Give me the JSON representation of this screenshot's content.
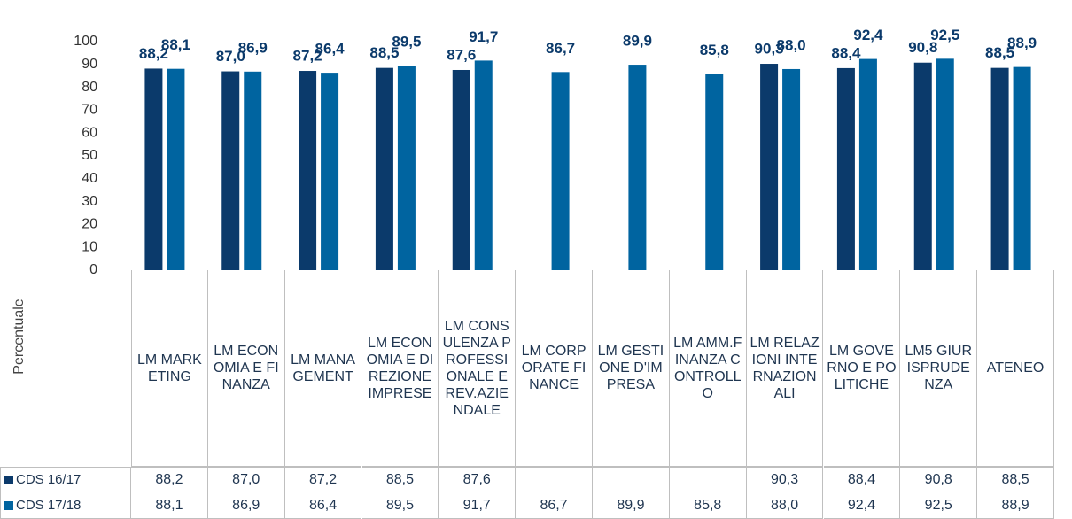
{
  "chart_data": {
    "type": "bar",
    "y_label": "Percentuale",
    "categories": [
      "LM MARKETING",
      "LM ECONOMIA E FINANZA",
      "LM MANAGEMENT",
      "LM ECONOMIA E DIREZIONE IMPRESE",
      "LM CONSULENZA PROFESSIONALE E REV.AZIENDALE",
      "LM CORPORATE FINANCE",
      "LM GESTIONE D'IMPRESA",
      "LM AMM.FINANZA CONTROLLO",
      "LM RELAZIONI INTERNAZIONALI",
      "LM GOVERNO E POLITICHE",
      "LM5 GIURISPRUDENZA",
      "ATENEO"
    ],
    "series": [
      {
        "name": "CDS 16/17",
        "color": "#0b3a6b",
        "values": [
          88.2,
          87.0,
          87.2,
          88.5,
          87.6,
          null,
          null,
          null,
          90.3,
          88.4,
          90.8,
          88.5
        ],
        "value_labels": [
          "88,2",
          "87,0",
          "87,2",
          "88,5",
          "87,6",
          null,
          null,
          null,
          "90,3",
          "88,4",
          "90,8",
          "88,5"
        ]
      },
      {
        "name": "CDS 17/18",
        "color": "#0064a0",
        "values": [
          88.1,
          86.9,
          86.4,
          89.5,
          91.7,
          86.7,
          89.9,
          85.8,
          88.0,
          92.4,
          92.5,
          88.9
        ],
        "value_labels": [
          "88,1",
          "86,9",
          "86,4",
          "89,5",
          "91,7",
          "86,7",
          "89,9",
          "85,8",
          "88,0",
          "92,4",
          "92,5",
          "88,9"
        ]
      }
    ],
    "ylim": [
      0,
      100
    ],
    "yticks": [
      0,
      10,
      20,
      30,
      40,
      50,
      60,
      70,
      80,
      90,
      100
    ]
  }
}
